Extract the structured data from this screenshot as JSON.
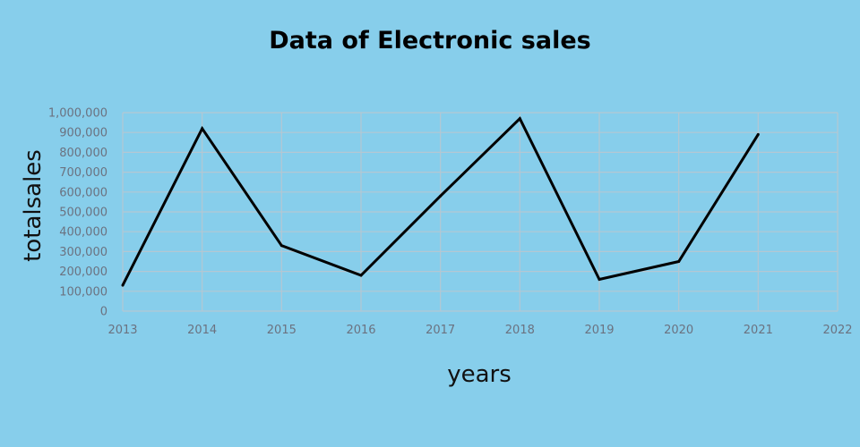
{
  "chart_data": {
    "type": "line",
    "title": "Data of Electronic sales",
    "xlabel": "years",
    "ylabel": "totalsales",
    "x_ticks": [
      "2013",
      "2014",
      "2015",
      "2016",
      "2017",
      "2018",
      "2019",
      "2020",
      "2021",
      "2022"
    ],
    "y_ticks": [
      "0",
      "100,000",
      "200,000",
      "300,000",
      "400,000",
      "500,000",
      "600,000",
      "700,000",
      "800,000",
      "900,000",
      "1,000,000"
    ],
    "xlim": [
      2013,
      2022
    ],
    "ylim": [
      0,
      1000000
    ],
    "grid": true,
    "series": [
      {
        "x": [
          2013,
          2014,
          2015,
          2016,
          2017,
          2018,
          2019,
          2020,
          2021
        ],
        "values": [
          130000,
          920000,
          330000,
          180000,
          580000,
          970000,
          160000,
          250000,
          890000
        ]
      }
    ],
    "colors": {
      "background": "#87ceeb",
      "line": "#000000",
      "grid": "#b4c7d3"
    }
  }
}
